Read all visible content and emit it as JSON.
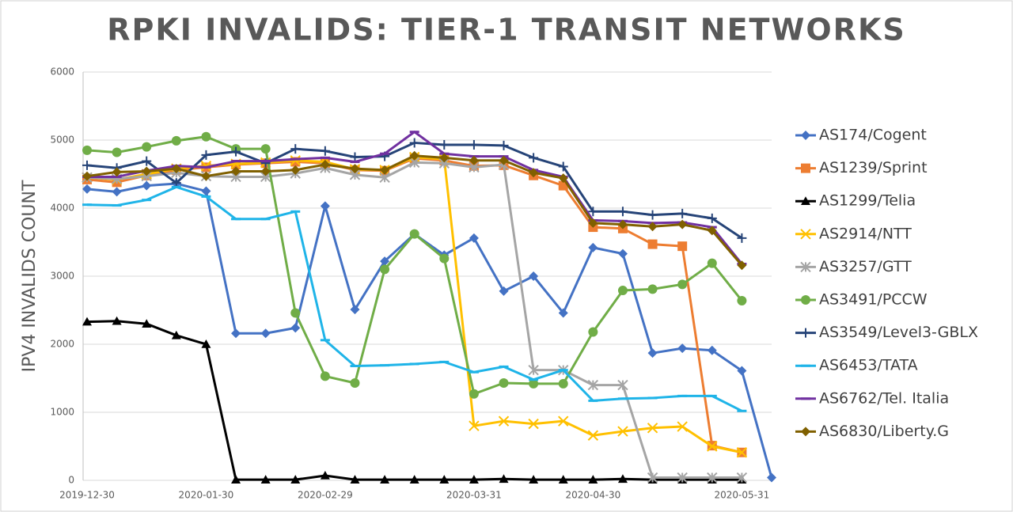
{
  "chart_data": {
    "type": "line",
    "title": "RPKI INVALIDS: TIER-1 TRANSIT NETWORKS",
    "y_label": "IPV4 INVALIDS COUNT",
    "categories": [
      "2019-12-30",
      null,
      null,
      null,
      "2020-01-30",
      null,
      null,
      null,
      "2020-02-29",
      null,
      null,
      null,
      null,
      "2020-03-31",
      null,
      null,
      null,
      "2020-04-30",
      null,
      null,
      null,
      null,
      "2020-05-31",
      null
    ],
    "ylim": [
      0,
      6000
    ],
    "yticks": [
      0,
      1000,
      2000,
      3000,
      4000,
      5000,
      6000
    ],
    "grid": true,
    "series": [
      {
        "name": "AS174/Cogent",
        "color": "#4472c4",
        "marker": "diamond",
        "values": [
          4280,
          4240,
          4330,
          4360,
          4250,
          2160,
          2160,
          2240,
          4030,
          2510,
          3220,
          3620,
          3310,
          3560,
          2780,
          3000,
          2460,
          3420,
          3330,
          1870,
          1940,
          1910,
          1610,
          40
        ]
      },
      {
        "name": "AS1239/Sprint",
        "color": "#ed7d31",
        "marker": "square",
        "values": [
          4420,
          4380,
          4480,
          4560,
          4600,
          4640,
          4660,
          4680,
          4660,
          4560,
          4550,
          4730,
          4700,
          4620,
          4630,
          4480,
          4330,
          3720,
          3700,
          3470,
          3440,
          510,
          410,
          null
        ]
      },
      {
        "name": "AS1299/Telia",
        "color": "#000000",
        "marker": "triangle",
        "values": [
          2330,
          2340,
          2300,
          2130,
          2000,
          10,
          10,
          10,
          70,
          10,
          10,
          10,
          10,
          10,
          20,
          10,
          10,
          10,
          20,
          10,
          10,
          10,
          10,
          null
        ]
      },
      {
        "name": "AS2914/NTT",
        "color": "#ffc000",
        "marker": "x",
        "values": [
          4450,
          4420,
          4500,
          4580,
          4620,
          4650,
          4670,
          4700,
          4680,
          4570,
          4560,
          4750,
          4720,
          800,
          870,
          830,
          870,
          660,
          720,
          770,
          790,
          500,
          410,
          null
        ]
      },
      {
        "name": "AS3257/GTT",
        "color": "#a5a5a5",
        "marker": "star",
        "values": [
          4450,
          4430,
          4470,
          4520,
          4470,
          4460,
          4460,
          4510,
          4590,
          4490,
          4450,
          4670,
          4660,
          4600,
          4640,
          1620,
          1620,
          1400,
          1400,
          40,
          40,
          40,
          40,
          null
        ]
      },
      {
        "name": "AS3491/PCCW",
        "color": "#70ad47",
        "marker": "circle",
        "values": [
          4850,
          4820,
          4900,
          4990,
          5050,
          4870,
          4870,
          2460,
          1530,
          1430,
          3100,
          3620,
          3260,
          1270,
          1430,
          1420,
          1420,
          2180,
          2790,
          2810,
          2880,
          3190,
          2640,
          null
        ]
      },
      {
        "name": "AS3549/Level3-GBLX",
        "color": "#264478",
        "marker": "plus",
        "values": [
          4630,
          4590,
          4690,
          4370,
          4780,
          4830,
          4660,
          4870,
          4840,
          4750,
          4760,
          4960,
          4930,
          4930,
          4920,
          4740,
          4610,
          3950,
          3950,
          3900,
          3920,
          3850,
          3560,
          null
        ]
      },
      {
        "name": "AS6453/TATA",
        "color": "#1fb4e8",
        "marker": "dash",
        "values": [
          4050,
          4040,
          4120,
          4310,
          4170,
          3840,
          3840,
          3950,
          2060,
          1680,
          1690,
          1710,
          1740,
          1590,
          1670,
          1480,
          1620,
          1170,
          1200,
          1210,
          1240,
          1240,
          1020,
          null
        ]
      },
      {
        "name": "AS6762/Tel. Italia",
        "color": "#7030a0",
        "marker": "dash",
        "values": [
          4460,
          4460,
          4550,
          4620,
          4600,
          4690,
          4690,
          4720,
          4740,
          4680,
          4800,
          5120,
          4800,
          4760,
          4760,
          4560,
          4460,
          3820,
          3810,
          3780,
          3790,
          3720,
          3180,
          null
        ]
      },
      {
        "name": "AS6830/Liberty.G",
        "color": "#806000",
        "marker": "diamond",
        "values": [
          4470,
          4530,
          4540,
          4580,
          4470,
          4540,
          4540,
          4560,
          4640,
          4580,
          4560,
          4770,
          4740,
          4700,
          4700,
          4520,
          4440,
          3780,
          3760,
          3730,
          3760,
          3670,
          3160,
          null
        ]
      }
    ]
  }
}
